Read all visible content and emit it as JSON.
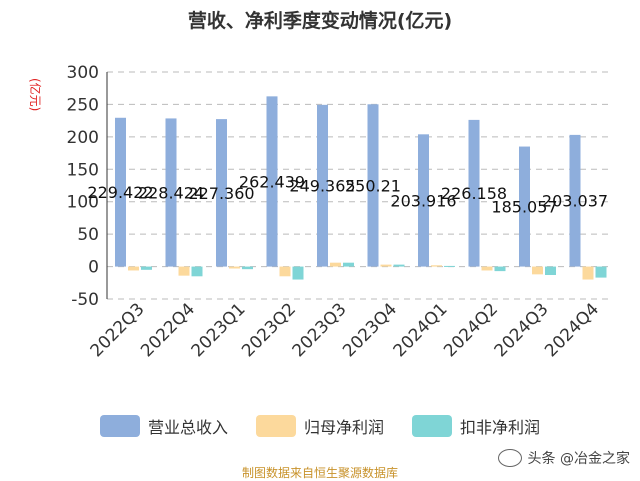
{
  "title": "营收、净利季度变动情况(亿元)",
  "y_unit": "(亿元)",
  "source": "制图数据来自恒生聚源数据库",
  "watermark": "头条 @冶金之家",
  "colors": {
    "revenue": "#8eaedc",
    "net_profit": "#fcd99c",
    "deducted_profit": "#7fd5d6"
  },
  "legend": [
    {
      "label": "营业总收入",
      "color": "#8eaedc"
    },
    {
      "label": "归母净利润",
      "color": "#fcd99c"
    },
    {
      "label": "扣非净利润",
      "color": "#7fd5d6"
    }
  ],
  "chart_data": {
    "type": "bar",
    "title": "营收、净利季度变动情况(亿元)",
    "ylabel": "(亿元)",
    "xlabel": "",
    "ylim": [
      -50,
      300
    ],
    "yticks": [
      -50,
      0,
      50,
      100,
      150,
      200,
      250,
      300
    ],
    "grid": true,
    "legend_position": "bottom",
    "categories": [
      "2022Q3",
      "2022Q4",
      "2023Q1",
      "2023Q2",
      "2023Q3",
      "2023Q4",
      "2024Q1",
      "2024Q2",
      "2024Q3",
      "2024Q4"
    ],
    "series": [
      {
        "name": "营业总收入",
        "values": [
          229.422,
          228.424,
          227.36,
          262.439,
          249.365,
          250.21,
          203.916,
          226.158,
          185.057,
          203.037
        ],
        "data_labels": [
          "229.422",
          "228.424",
          "227.360",
          "262.439",
          "249.365",
          "250.21",
          "203.916",
          "226.158",
          "185.057",
          "203.037"
        ]
      },
      {
        "name": "归母净利润",
        "values": [
          -6,
          -14,
          -3,
          -15,
          6,
          3,
          2,
          -6,
          -12,
          -20
        ]
      },
      {
        "name": "扣非净利润",
        "values": [
          -5,
          -15,
          -4,
          -20,
          6,
          3,
          1,
          -7,
          -13,
          -17
        ]
      }
    ]
  }
}
